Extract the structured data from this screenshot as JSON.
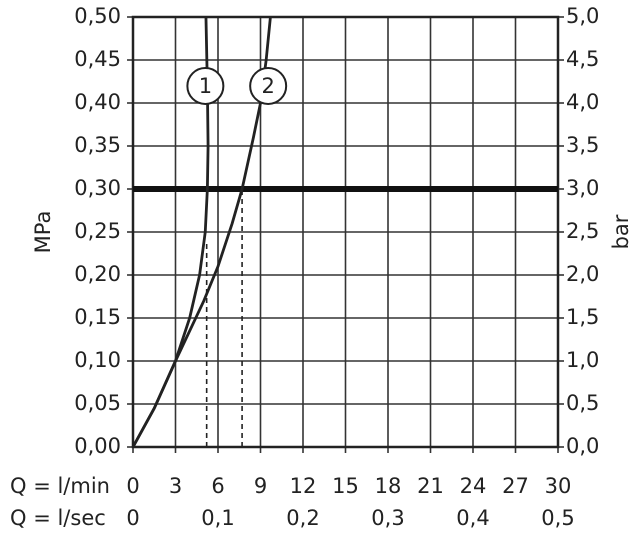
{
  "chart_data": {
    "type": "line",
    "y_label": "MPa",
    "y2_label": "bar",
    "x_label": "Q = l/min",
    "x2_label": "Q = l/sec",
    "xlim": [
      0,
      30
    ],
    "xticks": [
      0,
      3,
      6,
      9,
      12,
      15,
      18,
      21,
      24,
      27,
      30
    ],
    "x2lim": [
      0,
      0.5
    ],
    "x2ticks": [
      0,
      {
        "value": 0.1,
        "label": "0,1"
      },
      {
        "value": 0.2,
        "label": "0,2"
      },
      {
        "value": 0.3,
        "label": "0,3"
      },
      {
        "value": 0.4,
        "label": "0,4"
      },
      {
        "value": 0.5,
        "label": "0,5"
      }
    ],
    "ylim": [
      0,
      0.5
    ],
    "yticks": [
      {
        "value": 0,
        "label": "0,00"
      },
      {
        "value": 0.05,
        "label": "0,05"
      },
      {
        "value": 0.1,
        "label": "0,10"
      },
      {
        "value": 0.15,
        "label": "0,15"
      },
      {
        "value": 0.2,
        "label": "0,20"
      },
      {
        "value": 0.25,
        "label": "0,25"
      },
      {
        "value": 0.3,
        "label": "0,30"
      },
      {
        "value": 0.35,
        "label": "0,35"
      },
      {
        "value": 0.4,
        "label": "0,40"
      },
      {
        "value": 0.45,
        "label": "0,45"
      },
      {
        "value": 0.5,
        "label": "0,50"
      }
    ],
    "y2lim": [
      0,
      5
    ],
    "y2ticks": [
      {
        "value": 0,
        "label": "0,0"
      },
      {
        "value": 0.5,
        "label": "0,5"
      },
      {
        "value": 1,
        "label": "1,0"
      },
      {
        "value": 1.5,
        "label": "1,5"
      },
      {
        "value": 2,
        "label": "2,0"
      },
      {
        "value": 2.5,
        "label": "2,5"
      },
      {
        "value": 3,
        "label": "3,0"
      },
      {
        "value": 3.5,
        "label": "3,5"
      },
      {
        "value": 4,
        "label": "4,0"
      },
      {
        "value": 4.5,
        "label": "4,5"
      },
      {
        "value": 5,
        "label": "5,0"
      }
    ],
    "grid": true,
    "operating_pressure": 0.3,
    "series": [
      {
        "name": "1",
        "color": "#222222",
        "x": [
          0,
          1.5,
          3,
          4,
          4.7,
          5.1,
          5.25,
          5.3,
          5.25,
          5.15
        ],
        "values": [
          0,
          0.045,
          0.1,
          0.15,
          0.2,
          0.25,
          0.3,
          0.35,
          0.42,
          0.5
        ],
        "drop_line": {
          "x": 5.2,
          "y": 0.24
        }
      },
      {
        "name": "2",
        "color": "#222222",
        "x": [
          0,
          1.5,
          3,
          5,
          6,
          7,
          7.7,
          8.5,
          9,
          9.4,
          9.7
        ],
        "values": [
          0,
          0.045,
          0.1,
          0.17,
          0.21,
          0.26,
          0.3,
          0.36,
          0.4,
          0.45,
          0.5
        ],
        "drop_line": {
          "x": 7.7,
          "y": 0.3
        }
      }
    ]
  }
}
